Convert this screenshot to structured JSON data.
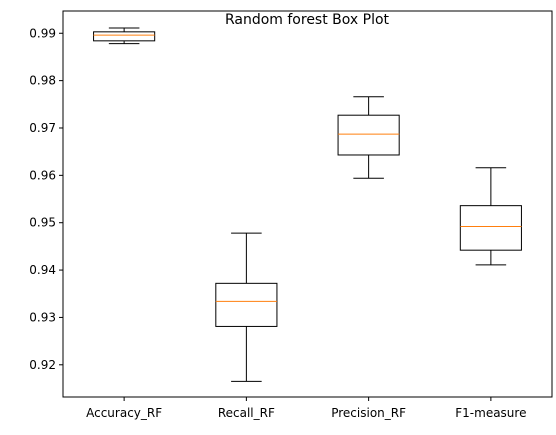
{
  "chart_data": {
    "type": "box",
    "title": "Random forest Box Plot",
    "xlabel": "",
    "ylabel": "",
    "categories": [
      "Accuracy_RF",
      "Recall_RF",
      "Precision_RF",
      "F1-measure"
    ],
    "boxes": [
      {
        "name": "Accuracy_RF",
        "whisker_low": 0.9878,
        "q1": 0.9884,
        "median": 0.9896,
        "q3": 0.9903,
        "whisker_high": 0.9911
      },
      {
        "name": "Recall_RF",
        "whisker_low": 0.9165,
        "q1": 0.9281,
        "median": 0.9334,
        "q3": 0.9372,
        "whisker_high": 0.9478
      },
      {
        "name": "Precision_RF",
        "whisker_low": 0.9594,
        "q1": 0.9643,
        "median": 0.9687,
        "q3": 0.9727,
        "whisker_high": 0.9766
      },
      {
        "name": "F1-measure",
        "whisker_low": 0.9411,
        "q1": 0.9442,
        "median": 0.9492,
        "q3": 0.9536,
        "whisker_high": 0.9616
      }
    ],
    "ylim": [
      0.9132,
      0.9947
    ],
    "yticks": [
      "0.92",
      "0.93",
      "0.94",
      "0.95",
      "0.96",
      "0.97",
      "0.98",
      "0.99"
    ],
    "grid": false,
    "colors": {
      "box": "#000000",
      "median": "#ff7f0e"
    }
  }
}
